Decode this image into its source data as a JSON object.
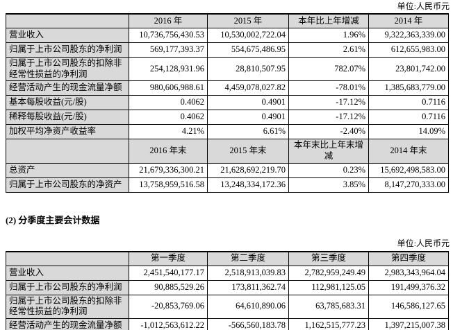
{
  "unit": {
    "label": "单位:人民币元"
  },
  "section2_heading": "(2) 分季度主要会计数据",
  "colors": {
    "header_bg": "#d9d9d9",
    "border": "#000000",
    "page_bg": "#ffffff",
    "text": "#000000"
  },
  "tables": [
    {
      "name": "annual-key-financials",
      "rows": [
        {
          "type": "header",
          "cells": [
            "",
            "2016 年",
            "2015 年",
            "本年比上年增减",
            "2014 年"
          ]
        },
        {
          "type": "data",
          "cells": [
            "营业收入",
            "10,736,756,430.53",
            "10,530,002,722.04",
            "1.96%",
            "9,322,363,339.00"
          ]
        },
        {
          "type": "data",
          "cells": [
            "归属于上市公司股东的净利润",
            "569,177,393.37",
            "554,675,486.95",
            "2.61%",
            "612,655,983.00"
          ]
        },
        {
          "type": "data",
          "cells": [
            "归属于上市公司股东的扣除非经常性损益的净利润",
            "254,128,931.96",
            "28,810,507.95",
            "782.07%",
            "23,801,742.00"
          ]
        },
        {
          "type": "data",
          "cells": [
            "经营活动产生的现金流量净额",
            "980,606,988.61",
            "4,459,078,027.82",
            "-78.01%",
            "1,385,683,779.00"
          ]
        },
        {
          "type": "data",
          "cells": [
            "基本每股收益(元/股)",
            "0.4062",
            "0.4901",
            "-17.12%",
            "0.7116"
          ]
        },
        {
          "type": "data",
          "cells": [
            "稀释每股收益(元/股)",
            "0.4062",
            "0.4901",
            "-17.12%",
            "0.7116"
          ]
        },
        {
          "type": "data",
          "cells": [
            "加权平均净资产收益率",
            "4.21%",
            "6.61%",
            "-2.40%",
            "14.09%"
          ]
        },
        {
          "type": "header",
          "cells": [
            "",
            "2016 年末",
            "2015 年末",
            "本年末比上年末增减",
            "2014 年末"
          ]
        },
        {
          "type": "data",
          "cells": [
            "总资产",
            "21,679,336,300.21",
            "21,628,692,219.70",
            "0.23%",
            "15,692,498,583.00"
          ]
        },
        {
          "type": "data",
          "cells": [
            "归属于上市公司股东的净资产",
            "13,758,959,516.58",
            "13,248,334,172.36",
            "3.85%",
            "8,147,270,333.00"
          ]
        }
      ]
    },
    {
      "name": "quarterly-key-financials",
      "rows": [
        {
          "type": "header",
          "cells": [
            "",
            "第一季度",
            "第二季度",
            "第三季度",
            "第四季度"
          ]
        },
        {
          "type": "data",
          "cells": [
            "营业收入",
            "2,451,540,177.17",
            "2,518,913,039.83",
            "2,782,959,249.49",
            "2,983,343,964.04"
          ]
        },
        {
          "type": "data",
          "cells": [
            "归属于上市公司股东的净利润",
            "90,885,529.26",
            "173,811,362.74",
            "112,981,125.05",
            "191,499,376.32"
          ]
        },
        {
          "type": "data",
          "cells": [
            "归属于上市公司股东的扣除非经常性损益的净利润",
            "-20,853,769.06",
            "64,610,890.06",
            "63,785,683.31",
            "146,586,127.65"
          ]
        },
        {
          "type": "data",
          "cells": [
            "经营活动产生的现金流量净额",
            "-1,012,563,612.22",
            "-566,560,183.78",
            "1,162,515,777.23",
            "1,397,215,007.38"
          ]
        }
      ]
    }
  ]
}
